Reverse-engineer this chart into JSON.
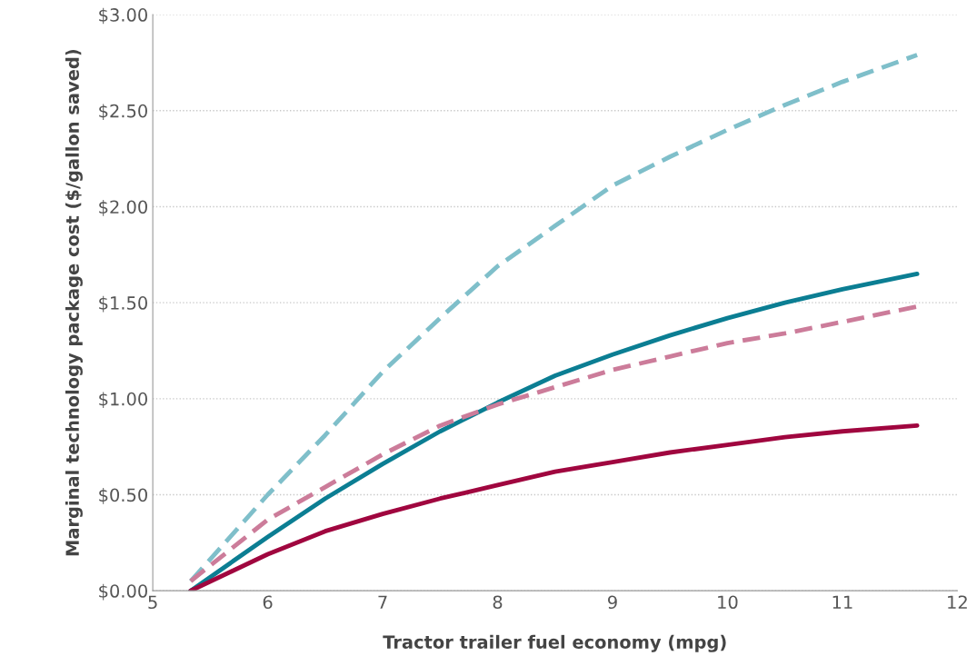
{
  "chart_data": {
    "type": "line",
    "xlabel": "Tractor trailer fuel economy (mpg)",
    "ylabel": "Marginal technology package cost ($/gallon saved)",
    "x": [
      5.33,
      6,
      6.5,
      7,
      7.5,
      8,
      8.5,
      9,
      9.5,
      10,
      10.5,
      11,
      11.65
    ],
    "series": [
      {
        "color": "#7fbfca",
        "line_style": "dashed",
        "values": [
          0.05,
          0.5,
          0.81,
          1.14,
          1.42,
          1.69,
          1.9,
          2.11,
          2.26,
          2.4,
          2.53,
          2.65,
          2.79
        ]
      },
      {
        "color": "#0b7e93",
        "line_style": "solid",
        "values": [
          0,
          0.28,
          0.48,
          0.66,
          0.83,
          0.98,
          1.12,
          1.23,
          1.33,
          1.42,
          1.5,
          1.57,
          1.65
        ]
      },
      {
        "color": "#cc7c9a",
        "line_style": "dashed",
        "values": [
          0.05,
          0.37,
          0.54,
          0.71,
          0.86,
          0.97,
          1.06,
          1.15,
          1.22,
          1.29,
          1.34,
          1.4,
          1.48
        ]
      },
      {
        "color": "#a0063f",
        "line_style": "solid",
        "values": [
          0,
          0.19,
          0.31,
          0.4,
          0.48,
          0.55,
          0.62,
          0.67,
          0.72,
          0.76,
          0.8,
          0.83,
          0.86
        ]
      }
    ],
    "xlim": [
      5,
      12
    ],
    "xticks": [
      5,
      6,
      7,
      8,
      9,
      10,
      11,
      12
    ],
    "ylim": [
      0,
      3
    ],
    "yticks": [
      {
        "value": 0,
        "label": "$0.00"
      },
      {
        "value": 0.5,
        "label": "$0.50"
      },
      {
        "value": 1,
        "label": "$1.00"
      },
      {
        "value": 1.5,
        "label": "$1.50"
      },
      {
        "value": 2,
        "label": "$2.00"
      },
      {
        "value": 2.5,
        "label": "$2.50"
      },
      {
        "value": 3,
        "label": "$3.00"
      }
    ],
    "grid": "y",
    "legend": false,
    "marker": "none"
  }
}
